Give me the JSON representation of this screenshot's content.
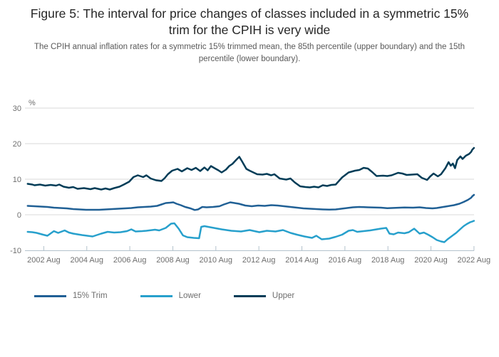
{
  "figure": {
    "title": "Figure 5: The interval for price changes of classes included in a symmetric 15% trim for the CPIH is very wide",
    "subtitle": "The CPIH annual inflation rates for a symmetric 15% trimmed mean, the 85th percentile (upper boundary) and the 15th percentile (lower boundary)."
  },
  "colors": {
    "trim": "#206095",
    "lower": "#27A0CC",
    "upper": "#003C57",
    "gridline": "#d9d9d9",
    "axis": "#b3c2cc",
    "tick_text": "#6e6e6e"
  },
  "chart_data": {
    "type": "line",
    "title": "Figure 5: The interval for price changes of classes included in a symmetric 15% trim for the CPIH is very wide",
    "y_axis_label": "%",
    "xlabel": "",
    "ylabel": "%",
    "ylim": [
      -10,
      30
    ],
    "y_ticks": [
      30,
      20,
      10,
      0,
      -10
    ],
    "xlim": [
      2001.88,
      2022.63
    ],
    "grid": "horizontal",
    "legend_position": "bottom-left",
    "x_ticks": [
      {
        "label": "2002 Aug",
        "x": 2002.63
      },
      {
        "label": "2004 Aug",
        "x": 2004.63
      },
      {
        "label": "2006 Aug",
        "x": 2006.63
      },
      {
        "label": "2008 Aug",
        "x": 2008.63
      },
      {
        "label": "2010 Aug",
        "x": 2010.63
      },
      {
        "label": "2012 Aug",
        "x": 2012.63
      },
      {
        "label": "2014 Aug",
        "x": 2014.63
      },
      {
        "label": "2016 Aug",
        "x": 2016.63
      },
      {
        "label": "2018 Aug",
        "x": 2018.63
      },
      {
        "label": "2020 Aug",
        "x": 2020.63
      },
      {
        "label": "2022 Aug",
        "x": 2022.63
      }
    ],
    "series": [
      {
        "name": "15% Trim",
        "color": "#206095",
        "points": [
          [
            2001.88,
            2.5
          ],
          [
            2002.2,
            2.4
          ],
          [
            2002.5,
            2.3
          ],
          [
            2002.8,
            2.2
          ],
          [
            2003.1,
            2.0
          ],
          [
            2003.4,
            1.9
          ],
          [
            2003.7,
            1.8
          ],
          [
            2004.0,
            1.6
          ],
          [
            2004.3,
            1.5
          ],
          [
            2004.6,
            1.4
          ],
          [
            2004.9,
            1.4
          ],
          [
            2005.2,
            1.4
          ],
          [
            2005.5,
            1.5
          ],
          [
            2005.8,
            1.6
          ],
          [
            2006.1,
            1.7
          ],
          [
            2006.4,
            1.8
          ],
          [
            2006.7,
            1.9
          ],
          [
            2007.0,
            2.1
          ],
          [
            2007.3,
            2.2
          ],
          [
            2007.6,
            2.3
          ],
          [
            2007.9,
            2.5
          ],
          [
            2008.1,
            2.9
          ],
          [
            2008.3,
            3.3
          ],
          [
            2008.5,
            3.4
          ],
          [
            2008.65,
            3.5
          ],
          [
            2008.8,
            3.1
          ],
          [
            2009.0,
            2.7
          ],
          [
            2009.2,
            2.2
          ],
          [
            2009.45,
            1.8
          ],
          [
            2009.65,
            1.35
          ],
          [
            2009.8,
            1.5
          ],
          [
            2010.0,
            2.2
          ],
          [
            2010.2,
            2.1
          ],
          [
            2010.5,
            2.2
          ],
          [
            2010.8,
            2.4
          ],
          [
            2011.0,
            2.9
          ],
          [
            2011.3,
            3.5
          ],
          [
            2011.5,
            3.3
          ],
          [
            2011.7,
            3.1
          ],
          [
            2012.0,
            2.6
          ],
          [
            2012.3,
            2.4
          ],
          [
            2012.6,
            2.6
          ],
          [
            2012.9,
            2.5
          ],
          [
            2013.2,
            2.7
          ],
          [
            2013.5,
            2.6
          ],
          [
            2013.8,
            2.4
          ],
          [
            2014.1,
            2.2
          ],
          [
            2014.4,
            2.0
          ],
          [
            2014.7,
            1.8
          ],
          [
            2015.0,
            1.7
          ],
          [
            2015.3,
            1.6
          ],
          [
            2015.6,
            1.5
          ],
          [
            2015.9,
            1.45
          ],
          [
            2016.2,
            1.5
          ],
          [
            2016.6,
            1.8
          ],
          [
            2017.0,
            2.1
          ],
          [
            2017.3,
            2.2
          ],
          [
            2017.7,
            2.1
          ],
          [
            2018.0,
            2.05
          ],
          [
            2018.3,
            2.0
          ],
          [
            2018.6,
            1.85
          ],
          [
            2019.0,
            1.95
          ],
          [
            2019.4,
            2.05
          ],
          [
            2019.8,
            2.0
          ],
          [
            2020.1,
            2.1
          ],
          [
            2020.4,
            1.9
          ],
          [
            2020.7,
            1.8
          ],
          [
            2020.9,
            1.9
          ],
          [
            2021.1,
            2.1
          ],
          [
            2021.4,
            2.4
          ],
          [
            2021.7,
            2.7
          ],
          [
            2021.95,
            3.1
          ],
          [
            2022.15,
            3.6
          ],
          [
            2022.35,
            4.2
          ],
          [
            2022.5,
            4.8
          ],
          [
            2022.55,
            5.2
          ],
          [
            2022.63,
            5.6
          ]
        ]
      },
      {
        "name": "Lower",
        "color": "#27A0CC",
        "points": [
          [
            2001.88,
            -4.8
          ],
          [
            2002.1,
            -4.9
          ],
          [
            2002.3,
            -5.1
          ],
          [
            2002.6,
            -5.6
          ],
          [
            2002.8,
            -5.9
          ],
          [
            2003.1,
            -4.6
          ],
          [
            2003.3,
            -5.1
          ],
          [
            2003.6,
            -4.4
          ],
          [
            2003.8,
            -5.0
          ],
          [
            2004.0,
            -5.3
          ],
          [
            2004.4,
            -5.7
          ],
          [
            2004.9,
            -6.1
          ],
          [
            2005.3,
            -5.3
          ],
          [
            2005.6,
            -4.8
          ],
          [
            2005.9,
            -5.0
          ],
          [
            2006.2,
            -4.9
          ],
          [
            2006.5,
            -4.6
          ],
          [
            2006.7,
            -4.1
          ],
          [
            2006.9,
            -4.7
          ],
          [
            2007.2,
            -4.6
          ],
          [
            2007.4,
            -4.5
          ],
          [
            2007.8,
            -4.2
          ],
          [
            2008.0,
            -4.4
          ],
          [
            2008.3,
            -3.7
          ],
          [
            2008.55,
            -2.5
          ],
          [
            2008.7,
            -2.4
          ],
          [
            2008.9,
            -3.9
          ],
          [
            2009.1,
            -5.8
          ],
          [
            2009.3,
            -6.3
          ],
          [
            2009.6,
            -6.5
          ],
          [
            2009.85,
            -6.6
          ],
          [
            2009.95,
            -3.4
          ],
          [
            2010.1,
            -3.2
          ],
          [
            2010.45,
            -3.6
          ],
          [
            2010.9,
            -4.1
          ],
          [
            2011.35,
            -4.5
          ],
          [
            2011.8,
            -4.7
          ],
          [
            2012.0,
            -4.5
          ],
          [
            2012.2,
            -4.3
          ],
          [
            2012.65,
            -4.9
          ],
          [
            2013.0,
            -4.5
          ],
          [
            2013.4,
            -4.7
          ],
          [
            2013.75,
            -4.3
          ],
          [
            2014.1,
            -5.1
          ],
          [
            2014.4,
            -5.6
          ],
          [
            2014.75,
            -6.1
          ],
          [
            2015.1,
            -6.5
          ],
          [
            2015.3,
            -5.9
          ],
          [
            2015.55,
            -6.9
          ],
          [
            2015.9,
            -6.7
          ],
          [
            2016.2,
            -6.2
          ],
          [
            2016.5,
            -5.6
          ],
          [
            2016.8,
            -4.5
          ],
          [
            2017.0,
            -4.3
          ],
          [
            2017.2,
            -4.8
          ],
          [
            2017.5,
            -4.6
          ],
          [
            2017.8,
            -4.4
          ],
          [
            2018.0,
            -4.2
          ],
          [
            2018.3,
            -3.9
          ],
          [
            2018.55,
            -3.7
          ],
          [
            2018.7,
            -5.3
          ],
          [
            2018.9,
            -5.5
          ],
          [
            2019.1,
            -5.0
          ],
          [
            2019.4,
            -5.2
          ],
          [
            2019.6,
            -4.9
          ],
          [
            2019.85,
            -3.9
          ],
          [
            2020.1,
            -5.3
          ],
          [
            2020.3,
            -5.0
          ],
          [
            2020.5,
            -5.6
          ],
          [
            2020.7,
            -6.3
          ],
          [
            2020.9,
            -7.1
          ],
          [
            2021.1,
            -7.5
          ],
          [
            2021.25,
            -7.7
          ],
          [
            2021.4,
            -6.9
          ],
          [
            2021.6,
            -6.0
          ],
          [
            2021.8,
            -5.1
          ],
          [
            2022.0,
            -4.0
          ],
          [
            2022.15,
            -3.2
          ],
          [
            2022.3,
            -2.6
          ],
          [
            2022.45,
            -2.1
          ],
          [
            2022.55,
            -1.9
          ],
          [
            2022.63,
            -1.7
          ]
        ]
      },
      {
        "name": "Upper",
        "color": "#003C57",
        "points": [
          [
            2001.88,
            8.7
          ],
          [
            2002.1,
            8.5
          ],
          [
            2002.2,
            8.3
          ],
          [
            2002.45,
            8.5
          ],
          [
            2002.7,
            8.2
          ],
          [
            2002.95,
            8.4
          ],
          [
            2003.2,
            8.2
          ],
          [
            2003.35,
            8.5
          ],
          [
            2003.55,
            7.9
          ],
          [
            2003.8,
            7.6
          ],
          [
            2004.0,
            7.8
          ],
          [
            2004.2,
            7.3
          ],
          [
            2004.5,
            7.5
          ],
          [
            2004.8,
            7.2
          ],
          [
            2005.0,
            7.5
          ],
          [
            2005.3,
            7.1
          ],
          [
            2005.5,
            7.4
          ],
          [
            2005.7,
            7.1
          ],
          [
            2005.9,
            7.5
          ],
          [
            2006.15,
            7.9
          ],
          [
            2006.35,
            8.5
          ],
          [
            2006.6,
            9.3
          ],
          [
            2006.8,
            10.6
          ],
          [
            2007.0,
            11.1
          ],
          [
            2007.25,
            10.6
          ],
          [
            2007.4,
            11.1
          ],
          [
            2007.6,
            10.2
          ],
          [
            2007.85,
            9.7
          ],
          [
            2008.1,
            9.5
          ],
          [
            2008.25,
            10.3
          ],
          [
            2008.4,
            11.4
          ],
          [
            2008.6,
            12.4
          ],
          [
            2008.85,
            12.9
          ],
          [
            2009.05,
            12.2
          ],
          [
            2009.3,
            13.1
          ],
          [
            2009.5,
            12.6
          ],
          [
            2009.7,
            13.2
          ],
          [
            2009.9,
            12.3
          ],
          [
            2010.1,
            13.3
          ],
          [
            2010.25,
            12.5
          ],
          [
            2010.4,
            13.7
          ],
          [
            2010.6,
            13.0
          ],
          [
            2010.75,
            12.5
          ],
          [
            2010.9,
            11.9
          ],
          [
            2011.1,
            12.7
          ],
          [
            2011.25,
            13.7
          ],
          [
            2011.4,
            14.3
          ],
          [
            2011.6,
            15.6
          ],
          [
            2011.72,
            16.3
          ],
          [
            2011.85,
            15.0
          ],
          [
            2012.05,
            12.9
          ],
          [
            2012.2,
            12.4
          ],
          [
            2012.55,
            11.4
          ],
          [
            2012.8,
            11.3
          ],
          [
            2013.0,
            11.5
          ],
          [
            2013.2,
            11.1
          ],
          [
            2013.35,
            11.4
          ],
          [
            2013.6,
            10.2
          ],
          [
            2013.9,
            9.9
          ],
          [
            2014.1,
            10.2
          ],
          [
            2014.3,
            9.1
          ],
          [
            2014.55,
            8.0
          ],
          [
            2014.8,
            7.8
          ],
          [
            2015.0,
            7.7
          ],
          [
            2015.2,
            7.9
          ],
          [
            2015.4,
            7.7
          ],
          [
            2015.6,
            8.3
          ],
          [
            2015.8,
            8.1
          ],
          [
            2016.0,
            8.4
          ],
          [
            2016.2,
            8.5
          ],
          [
            2016.5,
            10.5
          ],
          [
            2016.8,
            11.9
          ],
          [
            2017.1,
            12.4
          ],
          [
            2017.3,
            12.6
          ],
          [
            2017.5,
            13.2
          ],
          [
            2017.7,
            13.0
          ],
          [
            2017.9,
            12.0
          ],
          [
            2018.1,
            10.9
          ],
          [
            2018.4,
            11.0
          ],
          [
            2018.6,
            10.9
          ],
          [
            2018.8,
            11.1
          ],
          [
            2019.1,
            11.8
          ],
          [
            2019.3,
            11.6
          ],
          [
            2019.5,
            11.2
          ],
          [
            2019.75,
            11.3
          ],
          [
            2020.0,
            11.4
          ],
          [
            2020.2,
            10.4
          ],
          [
            2020.45,
            9.8
          ],
          [
            2020.6,
            10.8
          ],
          [
            2020.75,
            11.6
          ],
          [
            2020.95,
            10.8
          ],
          [
            2021.1,
            11.4
          ],
          [
            2021.3,
            13.1
          ],
          [
            2021.45,
            14.8
          ],
          [
            2021.55,
            13.8
          ],
          [
            2021.65,
            14.4
          ],
          [
            2021.75,
            13.1
          ],
          [
            2021.85,
            15.4
          ],
          [
            2022.0,
            16.4
          ],
          [
            2022.1,
            15.7
          ],
          [
            2022.25,
            16.6
          ],
          [
            2022.4,
            17.1
          ],
          [
            2022.5,
            17.7
          ],
          [
            2022.55,
            18.3
          ],
          [
            2022.63,
            18.8
          ]
        ]
      }
    ]
  }
}
